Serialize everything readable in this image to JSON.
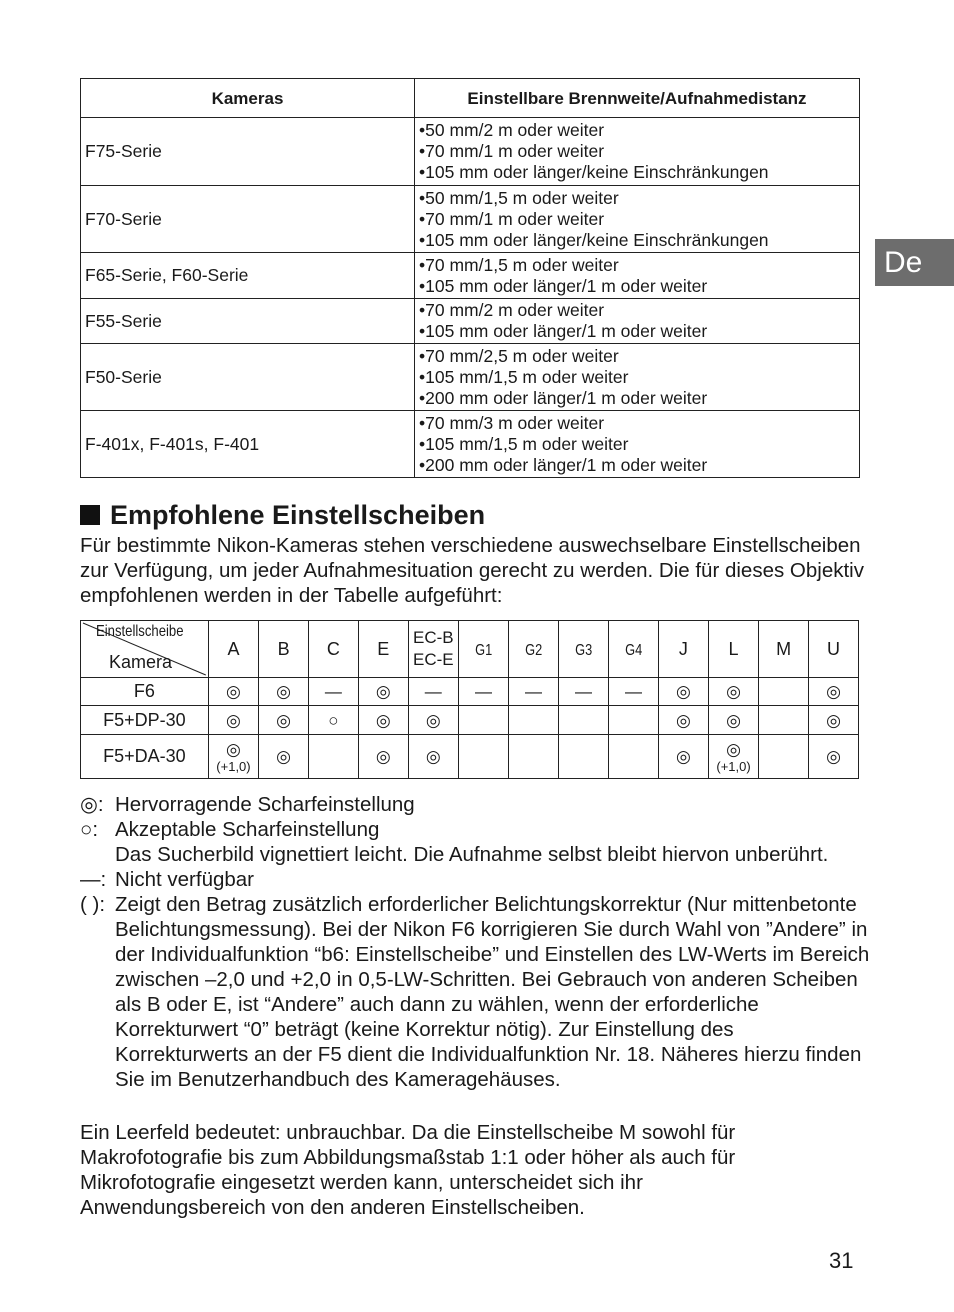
{
  "side_tab": "De",
  "table1": {
    "headers": [
      "Kameras",
      "Einstellbare Brennweite/Aufnahmedistanz"
    ],
    "rows": [
      {
        "camera": "F75-Serie",
        "items": [
          "50 mm/2 m oder weiter",
          "70 mm/1 m oder weiter",
          "105 mm oder länger/keine Einschränkungen"
        ]
      },
      {
        "camera": "F70-Serie",
        "items": [
          "50 mm/1,5 m oder weiter",
          "70 mm/1 m oder weiter",
          "105 mm oder länger/keine Einschränkungen"
        ]
      },
      {
        "camera": "F65-Serie, F60-Serie",
        "items": [
          "70 mm/1,5 m oder weiter",
          "105 mm oder länger/1 m oder weiter"
        ]
      },
      {
        "camera": "F55-Serie",
        "items": [
          "70 mm/2 m oder weiter",
          "105 mm oder länger/1 m oder weiter"
        ]
      },
      {
        "camera": "F50-Serie",
        "items": [
          "70 mm/2,5 m oder weiter",
          "105 mm/1,5 m oder weiter",
          "200 mm oder länger/1 m oder weiter"
        ]
      },
      {
        "camera": "F-401x, F-401s, F-401",
        "items": [
          "70 mm/3 m oder weiter",
          "105 mm/1,5 m oder weiter",
          "200 mm oder länger/1 m oder weiter"
        ]
      }
    ]
  },
  "section": {
    "title": "Empfohlene Einstellscheiben",
    "intro": "Für bestimmte Nikon-Kameras stehen verschiedene auswechselbare Einstellscheiben zur Verfügung, um jeder Aufnahmesituation gerecht zu werden. Die für dieses Objektiv empfohlenen werden in der Tabelle aufgeführt:"
  },
  "table2": {
    "corner_top": "Einstellscheibe",
    "corner_bottom": "Kamera",
    "columns": [
      "A",
      "B",
      "C",
      "E",
      "EC-B\nEC-E",
      "G1",
      "G2",
      "G3",
      "G4",
      "J",
      "L",
      "M",
      "U"
    ],
    "rows": [
      {
        "camera": "F6",
        "cells": [
          "◎",
          "◎",
          "—",
          "◎",
          "—",
          "—",
          "—",
          "—",
          "—",
          "◎",
          "◎",
          "",
          "◎"
        ]
      },
      {
        "camera": "F5+DP-30",
        "cells": [
          "◎",
          "◎",
          "○",
          "◎",
          "◎",
          "",
          "",
          "",
          "",
          "◎",
          "◎",
          "",
          "◎"
        ]
      },
      {
        "camera": "F5+DA-30",
        "cells": [
          "◎",
          "◎",
          "",
          "◎",
          "◎",
          "",
          "",
          "",
          "",
          "◎",
          "◎",
          "",
          "◎"
        ],
        "notes": [
          "(+1,0)",
          "",
          "",
          "",
          "",
          "",
          "",
          "",
          "",
          "",
          "(+1,0)",
          "",
          ""
        ]
      }
    ]
  },
  "legend": [
    {
      "key": "◎:",
      "text": "Hervorragende Scharfeinstellung"
    },
    {
      "key": "○:",
      "text": "Akzeptable Scharfeinstellung",
      "extra": "Das Sucherbild vignettiert leicht. Die Aufnahme selbst bleibt hiervon unberührt."
    },
    {
      "key": "—:",
      "text": "Nicht verfügbar"
    },
    {
      "key": "( ):",
      "text": "Zeigt den Betrag zusätzlich erforderlicher Belichtungskorrektur (Nur mittenbetonte Belichtungsmessung). Bei der Nikon F6 korrigieren Sie durch Wahl von ”Andere” in der Individualfunktion “b6: Einstellscheibe” und Einstellen des LW-Werts im Bereich zwischen –2,0 und +2,0 in 0,5-LW-Schritten. Bei Gebrauch von anderen Scheiben als B oder E, ist “Andere” auch dann zu wählen, wenn der erforderliche Korrekturwert “0” beträgt (keine Korrektur nötig). Zur Einstellung des Korrekturwerts an der F5 dient die Individualfunktion Nr. 18. Näheres hierzu finden Sie im Benutzerhandbuch des Kameragehäuses."
    }
  ],
  "closing": "Ein Leerfeld bedeutet: unbrauchbar. Da die Einstellscheibe M sowohl für Makrofotografie bis zum Abbildungsmaßstab 1:1 oder höher als auch für Mikrofotografie eingesetzt werden kann, unterscheidet sich ihr Anwendungsbereich von den anderen Einstellscheiben.",
  "page_number": "31"
}
